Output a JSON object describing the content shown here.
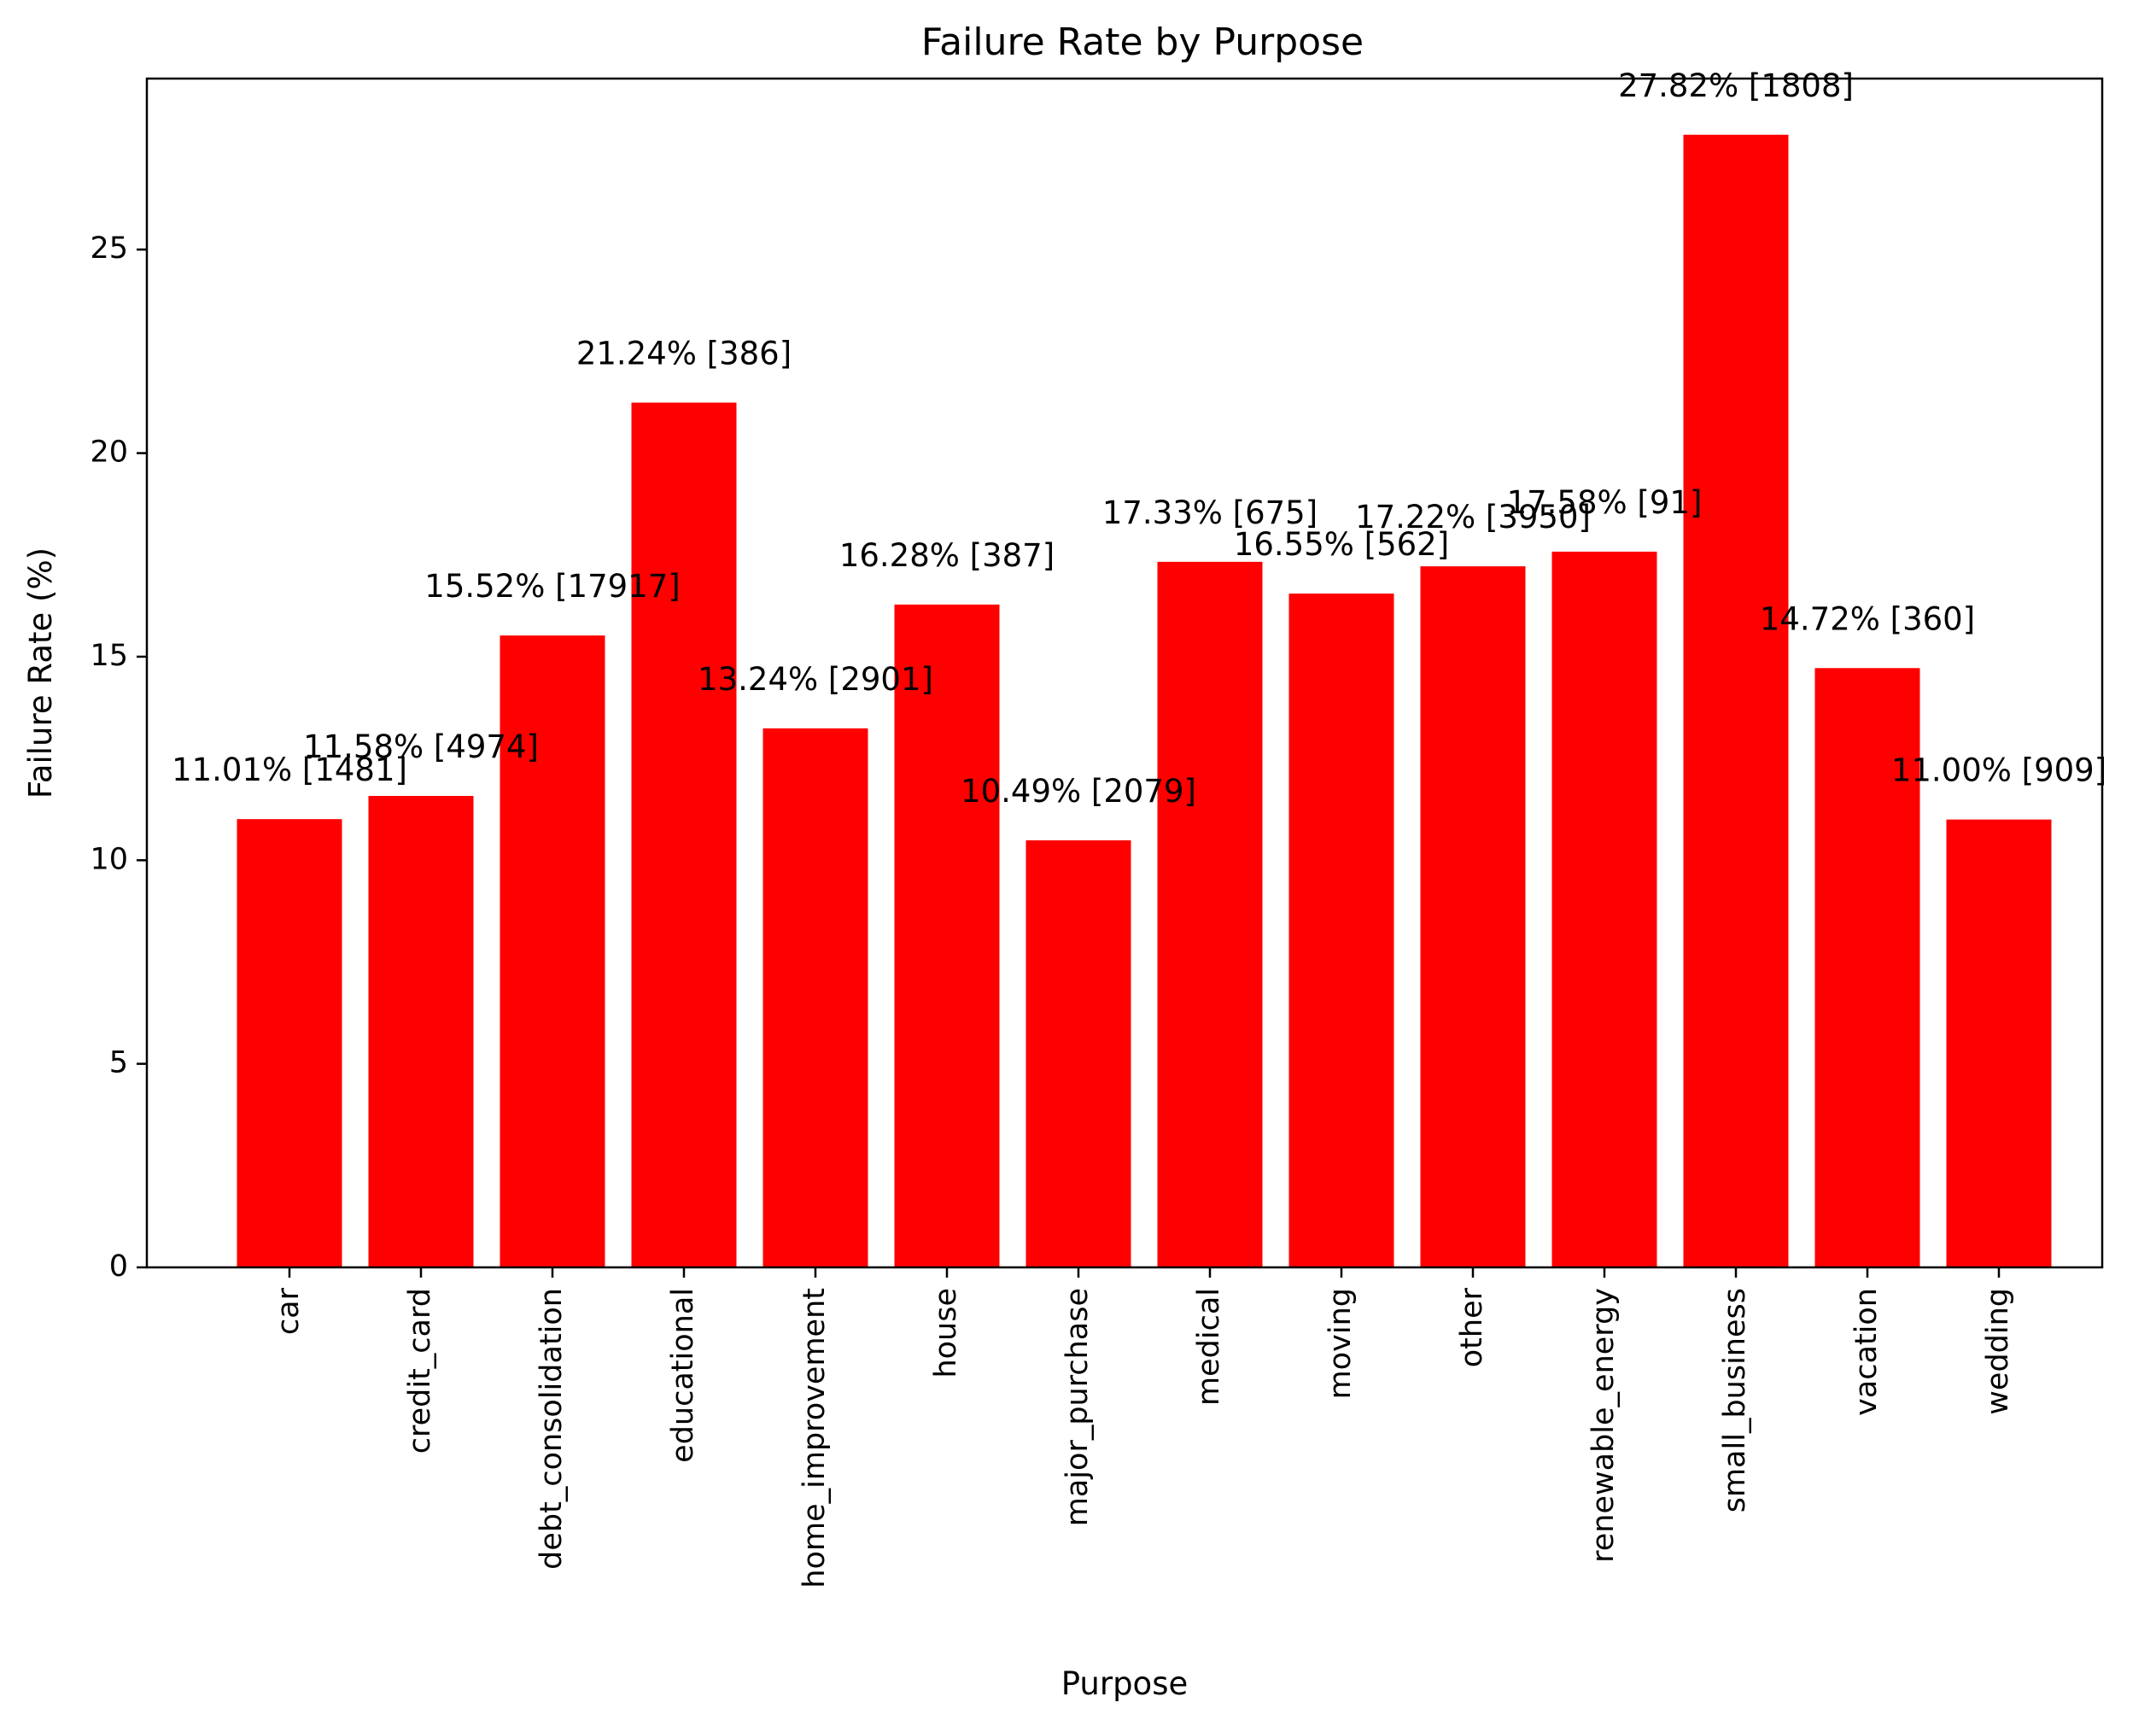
{
  "chart_data": {
    "type": "bar",
    "title": "Failure Rate by Purpose",
    "xlabel": "Purpose",
    "ylabel": "Failure Rate (%)",
    "ylim": [
      0,
      29.2
    ],
    "yticks": [
      0,
      5,
      10,
      15,
      20,
      25
    ],
    "grid": false,
    "bar_color": "#ff0000",
    "categories": [
      "car",
      "credit_card",
      "debt_consolidation",
      "educational",
      "home_improvement",
      "house",
      "major_purchase",
      "medical",
      "moving",
      "other",
      "renewable_energy",
      "small_business",
      "vacation",
      "wedding"
    ],
    "values": [
      11.01,
      11.58,
      15.52,
      21.24,
      13.24,
      16.28,
      10.49,
      17.33,
      16.55,
      17.22,
      17.58,
      27.82,
      14.72,
      11.0
    ],
    "data_labels": [
      "11.01% [1481]",
      "11.58% [4974]",
      "15.52% [17917]",
      "21.24% [386]",
      "13.24% [2901]",
      "16.28% [387]",
      "10.49% [2079]",
      "17.33% [675]",
      "16.55% [562]",
      "17.22% [3950]",
      "17.58% [91]",
      "27.82% [1808]",
      "14.72% [360]",
      "11.00% [909]"
    ]
  }
}
